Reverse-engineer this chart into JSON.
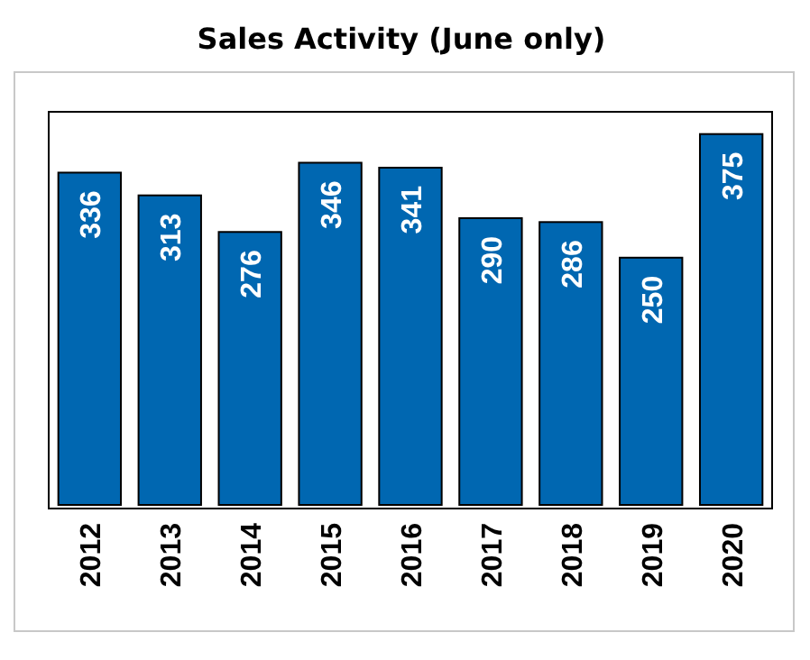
{
  "chart_data": {
    "type": "bar",
    "title": "Sales Activity (June only)",
    "categories": [
      "2012",
      "2013",
      "2014",
      "2015",
      "2016",
      "2017",
      "2018",
      "2019",
      "2020"
    ],
    "values": [
      336,
      313,
      276,
      346,
      341,
      290,
      286,
      250,
      375
    ],
    "color": "#0067b1",
    "data_labels": true
  }
}
